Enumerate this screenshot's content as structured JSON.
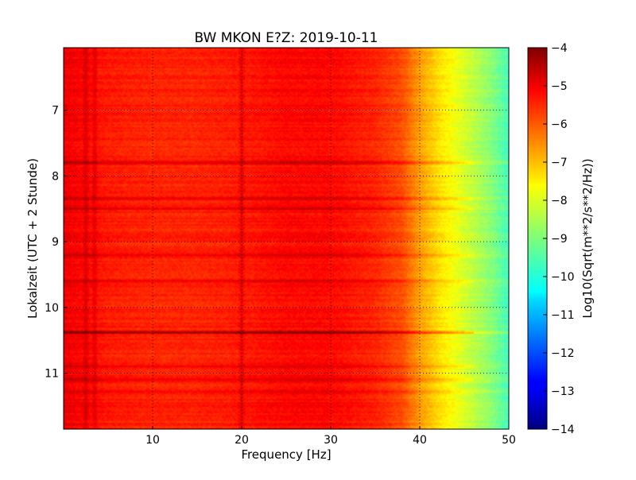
{
  "chart_data": {
    "type": "heatmap",
    "title": "BW MKON E?Z: 2019-10-11",
    "xlabel": "Frequency [Hz]",
    "ylabel": "Lokalzeit (UTC + 2 Stunde)",
    "xlim": [
      0,
      50
    ],
    "ylim": [
      6.05,
      11.85
    ],
    "y_inverted": true,
    "x_ticks": [
      10,
      20,
      30,
      40,
      50
    ],
    "y_ticks": [
      7,
      8,
      9,
      10,
      11
    ],
    "grid": true,
    "colormap": "jet",
    "colorbar": {
      "label": "Log10(Sqrt(m**2/s**2/Hz))",
      "min": -14,
      "max": -4,
      "ticks": [
        -4,
        -5,
        -6,
        -7,
        -8,
        -9,
        -10,
        -11,
        -12,
        -13,
        -14
      ]
    },
    "spectral_profile": {
      "frequency_hz": [
        0,
        5,
        10,
        15,
        20,
        25,
        30,
        35,
        38,
        40,
        42,
        44,
        46,
        48,
        50
      ],
      "log10_amplitude": [
        -5.1,
        -5.5,
        -5.6,
        -5.6,
        -5.5,
        -5.3,
        -5.3,
        -5.6,
        -6.0,
        -6.8,
        -7.4,
        -7.9,
        -8.4,
        -8.9,
        -9.6
      ]
    },
    "time_features": [
      {
        "time": 7.8,
        "delta": 0.7
      },
      {
        "time": 8.35,
        "delta": 0.6
      },
      {
        "time": 8.5,
        "delta": 0.6
      },
      {
        "time": 9.2,
        "delta": 0.5
      },
      {
        "time": 9.6,
        "delta": 0.4
      },
      {
        "time": 10.38,
        "delta": 1.4
      },
      {
        "time": 10.9,
        "delta": 0.5
      },
      {
        "time": 11.1,
        "delta": 0.6
      },
      {
        "time": 11.3,
        "delta": 0.4
      }
    ],
    "frequency_features": [
      {
        "frequency_hz": 2.5,
        "delta": 0.5
      },
      {
        "frequency_hz": 3.5,
        "delta": 0.4
      },
      {
        "frequency_hz": 20.0,
        "delta": 0.6
      }
    ]
  }
}
